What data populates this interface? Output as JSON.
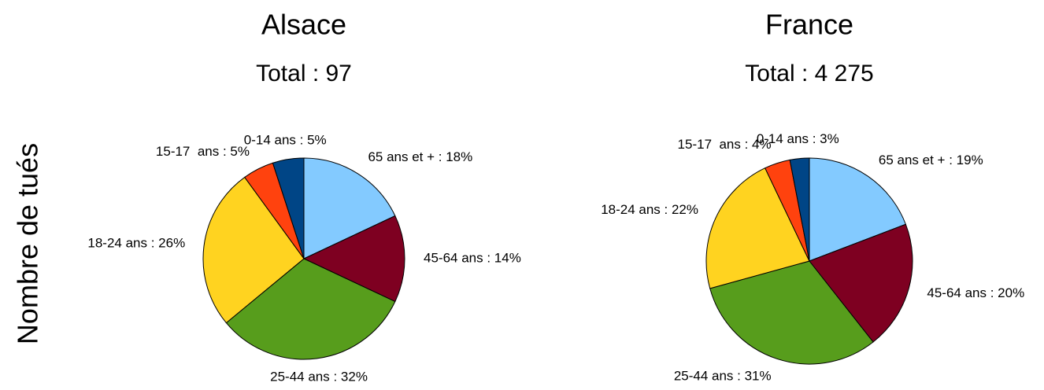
{
  "axis_label": "Nombre de tués",
  "chart_data": [
    {
      "type": "pie",
      "title": "Alsace",
      "subtitle": "Total : 97",
      "categories": [
        "65 ans et + : 18%",
        "45-64 ans : 14%",
        "25-44 ans : 32%",
        "18-24 ans : 26%",
        "15-17  ans : 5%",
        "0-14 ans : 5%"
      ],
      "values": [
        18,
        14,
        32,
        26,
        5,
        5
      ],
      "colors": [
        "#83caff",
        "#7e0021",
        "#579d1c",
        "#ffd320",
        "#ff420e",
        "#004586"
      ]
    },
    {
      "type": "pie",
      "title": "France",
      "subtitle": "Total : 4 275",
      "categories": [
        "65 ans et + : 19%",
        "45-64 ans : 20%",
        "25-44 ans : 31%",
        "18-24 ans : 22%",
        "15-17  ans : 4%",
        "0-14 ans : 3%"
      ],
      "values": [
        19,
        20,
        31,
        22,
        4,
        3
      ],
      "colors": [
        "#83caff",
        "#7e0021",
        "#579d1c",
        "#ffd320",
        "#ff420e",
        "#004586"
      ]
    }
  ]
}
